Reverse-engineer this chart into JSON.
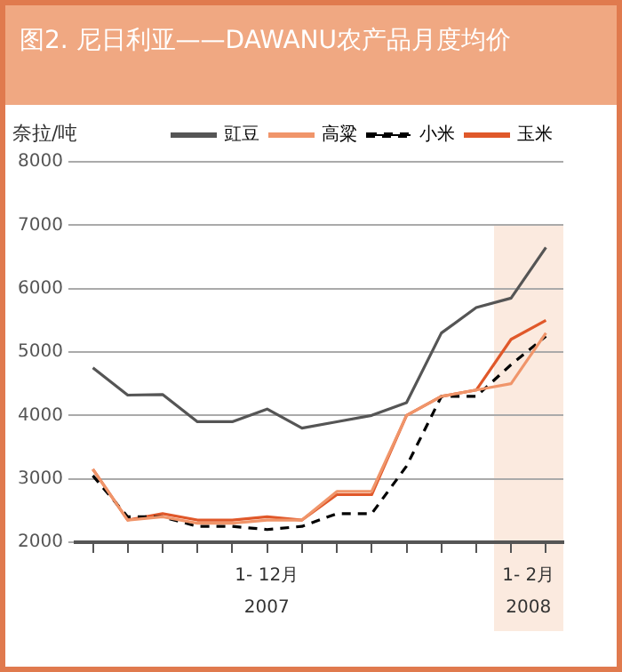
{
  "chart_data": {
    "type": "line",
    "title": "图2. 尼日利亚——DAWANU农产品月度均价",
    "ylabel": "奈拉/吨",
    "categories": [
      null,
      null,
      null,
      null,
      null,
      null,
      null,
      null,
      null,
      null,
      null,
      null,
      null,
      null
    ],
    "ylim": [
      2000,
      8000
    ],
    "yticks": [
      2000,
      3000,
      4000,
      5000,
      6000,
      7000,
      8000
    ],
    "grid": "y",
    "legend": "top right",
    "marker": "none",
    "series": [
      {
        "name": "豇豆",
        "color": "#555555",
        "values": [
          4750,
          4320,
          4330,
          3900,
          3900,
          4100,
          3800,
          3900,
          4000,
          4200,
          5300,
          5700,
          5850,
          6650
        ]
      },
      {
        "name": "高粱",
        "color": "#f0956a",
        "values": [
          3150,
          2350,
          2400,
          2300,
          2300,
          2350,
          2350,
          2800,
          2800,
          4000,
          4300,
          4400,
          4500,
          5300
        ]
      },
      {
        "name": "小米",
        "color": "#000000",
        "line_style": "dashed",
        "values": [
          3050,
          2400,
          2400,
          2250,
          2250,
          2200,
          2250,
          2450,
          2450,
          3200,
          4300,
          4300,
          4800,
          5250
        ]
      },
      {
        "name": "玉米",
        "color": "#e0582a",
        "values": [
          3150,
          2350,
          2450,
          2350,
          2350,
          2400,
          2350,
          2750,
          2750,
          4000,
          4300,
          4400,
          5200,
          5500
        ]
      }
    ],
    "annotations": [
      "1- 12月",
      "2007",
      "1- 2月",
      "2008"
    ]
  }
}
